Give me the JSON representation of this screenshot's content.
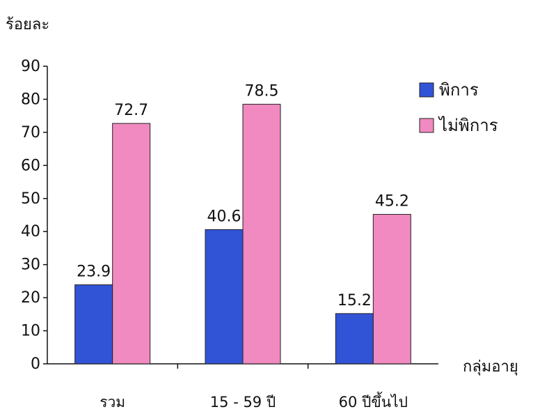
{
  "chart_data": {
    "type": "bar",
    "ylabel": "ร้อยละ",
    "xlabel": "กลุ่มอายุ",
    "ylim": [
      0,
      90
    ],
    "yticks": [
      0,
      10,
      20,
      30,
      40,
      50,
      60,
      70,
      80,
      90
    ],
    "categories": [
      "รวม",
      "15 - 59 ปี",
      "60 ปีขึ้นไป"
    ],
    "series": [
      {
        "name": "พิการ",
        "color": "#3153d6",
        "values": [
          23.9,
          40.6,
          15.2
        ]
      },
      {
        "name": "ไม่พิการ",
        "color": "#f08ac0",
        "values": [
          72.7,
          78.5,
          45.2
        ]
      }
    ],
    "value_labels": [
      [
        "23.9",
        "40.6",
        "15.2"
      ],
      [
        "72.7",
        "78.5",
        "45.2"
      ]
    ],
    "grid": false,
    "legend_position": "right"
  }
}
